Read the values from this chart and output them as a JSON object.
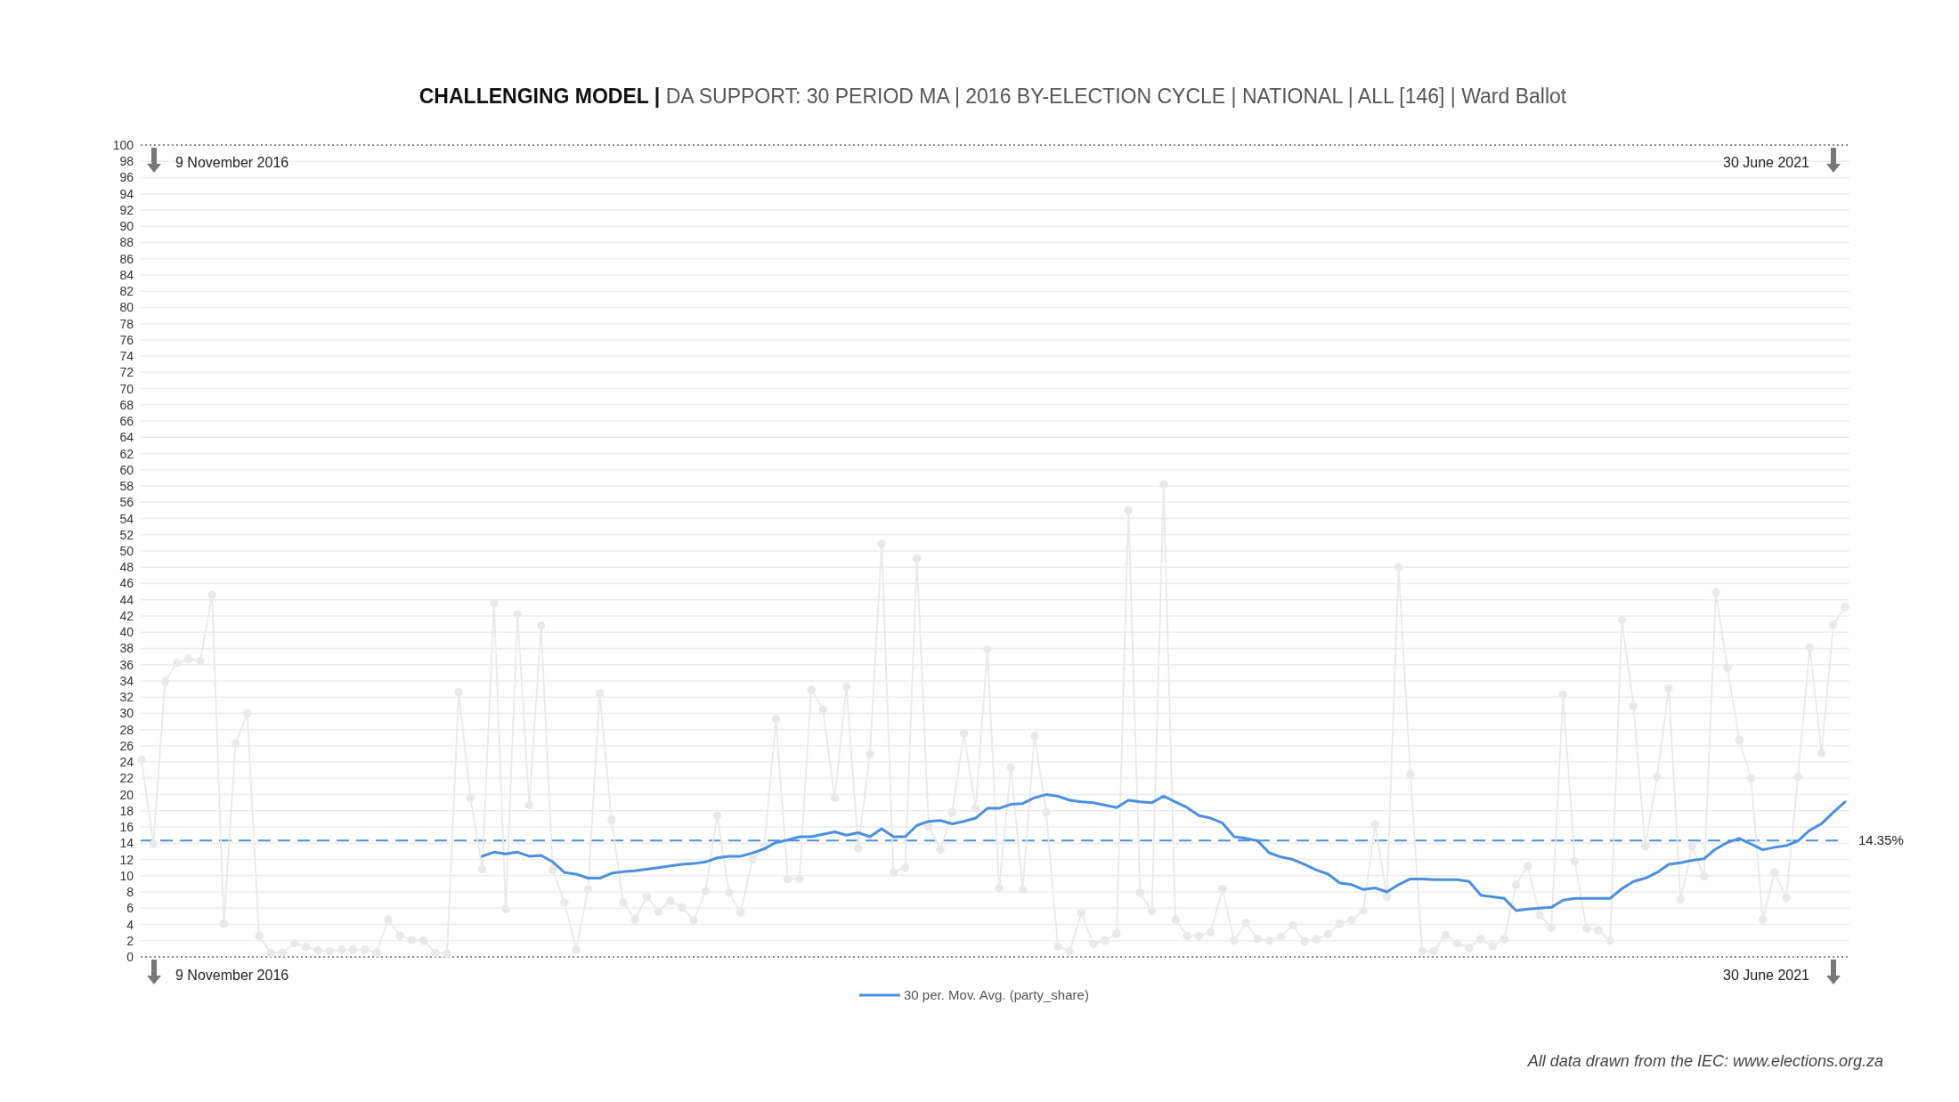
{
  "chart_data": {
    "type": "line",
    "title": "CHALLENGING MODEL |",
    "subtitle": "DA SUPPORT: 30 PERIOD MA | 2016 BY-ELECTION CYCLE | NATIONAL | ALL [146] | Ward Ballot",
    "categories": [
      null,
      null,
      null,
      null,
      null,
      null,
      null,
      null,
      null,
      null,
      null,
      null,
      null,
      null,
      null,
      null,
      null,
      null,
      null,
      null,
      null,
      null,
      null,
      null,
      null,
      null,
      null,
      null,
      null,
      null,
      null,
      null,
      null,
      null,
      null,
      null,
      null,
      null,
      null,
      null,
      null,
      null,
      null,
      null,
      null,
      null,
      null,
      null,
      null,
      null,
      null,
      null,
      null,
      null,
      null,
      null,
      null,
      null,
      null,
      null,
      null,
      null,
      null,
      null,
      null,
      null,
      null,
      null,
      null,
      null,
      null,
      null,
      null,
      null,
      null,
      null,
      null,
      null,
      null,
      null,
      null,
      null,
      null,
      null,
      null,
      null,
      null,
      null,
      null,
      null,
      null,
      null,
      null,
      null,
      null,
      null,
      null,
      null,
      null,
      null,
      null,
      null,
      null,
      null,
      null,
      null,
      null,
      null,
      null,
      null,
      null,
      null,
      null,
      null,
      null,
      null,
      null,
      null,
      null,
      null,
      null,
      null,
      null,
      null,
      null,
      null,
      null,
      null,
      null,
      null,
      null,
      null,
      null,
      null,
      null,
      null,
      null,
      null,
      null,
      null,
      null,
      null,
      null,
      null,
      null,
      null
    ],
    "series": [
      {
        "color": "#e9e9e9",
        "marker": "circle",
        "values": [
          24.3,
          13.9,
          33.9,
          36.2,
          36.7,
          36.5,
          44.6,
          4.1,
          26.3,
          30.0,
          2.6,
          0.5,
          0.5,
          1.7,
          1.2,
          0.8,
          0.7,
          0.9,
          0.9,
          0.9,
          0.5,
          4.6,
          2.6,
          2.1,
          2.0,
          0.5,
          0.4,
          32.6,
          19.6,
          10.8,
          43.6,
          5.9,
          42.2,
          18.7,
          40.8,
          10.7,
          6.7,
          0.9,
          8.3,
          32.5,
          16.9,
          6.7,
          4.6,
          7.4,
          5.6,
          6.9,
          6.1,
          4.5,
          8.1,
          17.4,
          7.9,
          5.5,
          12.0,
          13.5,
          29.3,
          9.6,
          9.6,
          32.9,
          30.5,
          19.6,
          33.3,
          13.4,
          25.0,
          50.9,
          10.4,
          11.0,
          49.1,
          16.1,
          13.2,
          17.8,
          27.5,
          18.3,
          37.9,
          8.5,
          23.3,
          8.3,
          27.2,
          17.8,
          1.3,
          0.7,
          5.4,
          1.6,
          2.0,
          2.9,
          55.0,
          7.9,
          5.7,
          58.2,
          4.6,
          2.6,
          2.6,
          3.0,
          8.4,
          2.0,
          4.2,
          2.2,
          2.0,
          2.5,
          3.9,
          1.9,
          2.2,
          2.8,
          4.1,
          4.5,
          5.7,
          16.3,
          7.4,
          48.0,
          22.5,
          0.7,
          0.7,
          2.7,
          1.7,
          1.1,
          2.2,
          1.3,
          2.2,
          8.9,
          11.2,
          5.2,
          3.6,
          32.3,
          11.8,
          3.5,
          3.3,
          2.0,
          41.5,
          30.9,
          13.6,
          22.2,
          33.1,
          7.1,
          13.6,
          9.9,
          44.9,
          35.6,
          26.7,
          22.0,
          4.6,
          10.4,
          7.3,
          22.2,
          38.1,
          25.1,
          40.9,
          43.1
        ]
      },
      {
        "name": "30 per. Mov. Avg. (party_share)",
        "color": "#4a90e2",
        "marker": "none",
        "values": [
          null,
          null,
          null,
          null,
          null,
          null,
          null,
          null,
          null,
          null,
          null,
          null,
          null,
          null,
          null,
          null,
          null,
          null,
          null,
          null,
          null,
          null,
          null,
          null,
          null,
          null,
          null,
          null,
          null,
          12.4,
          12.9,
          12.7,
          12.9,
          12.4,
          12.5,
          11.7,
          10.4,
          10.2,
          9.7,
          9.7,
          10.3,
          10.5,
          10.6,
          10.8,
          11.0,
          11.2,
          11.4,
          11.5,
          11.7,
          12.2,
          12.4,
          12.4,
          12.8,
          13.3,
          14.1,
          14.4,
          14.8,
          14.8,
          15.1,
          15.4,
          15.0,
          15.3,
          14.8,
          15.8,
          14.8,
          14.8,
          16.2,
          16.7,
          16.8,
          16.4,
          16.7,
          17.1,
          18.3,
          18.3,
          18.8,
          18.9,
          19.6,
          20.0,
          19.8,
          19.3,
          19.1,
          19.0,
          18.7,
          18.4,
          19.3,
          19.1,
          19.0,
          19.8,
          19.1,
          18.4,
          17.4,
          17.1,
          16.5,
          14.8,
          14.6,
          14.3,
          12.8,
          12.3,
          12.0,
          11.4,
          10.7,
          10.2,
          9.1,
          8.9,
          8.3,
          8.5,
          8.0,
          8.9,
          9.6,
          9.6,
          9.5,
          9.5,
          9.5,
          9.3,
          7.6,
          7.4,
          7.2,
          5.7,
          5.9,
          6.0,
          6.1,
          7.0,
          7.2,
          7.2,
          7.2,
          7.2,
          8.4,
          9.3,
          9.7,
          10.4,
          11.4,
          11.6,
          11.9,
          12.1,
          13.3,
          14.1,
          14.6,
          13.9,
          13.2,
          13.5,
          13.7,
          14.3,
          15.6,
          16.4,
          17.8,
          19.1
        ]
      }
    ],
    "ylim": [
      0,
      100
    ],
    "yticks": [
      0,
      2,
      4,
      6,
      8,
      10,
      12,
      14,
      16,
      18,
      20,
      22,
      24,
      26,
      28,
      30,
      32,
      34,
      36,
      38,
      40,
      42,
      44,
      46,
      48,
      50,
      52,
      54,
      56,
      58,
      60,
      62,
      64,
      66,
      68,
      70,
      72,
      74,
      76,
      78,
      80,
      82,
      84,
      86,
      88,
      90,
      92,
      94,
      96,
      98,
      100
    ],
    "grid": "y",
    "legend": "bottom",
    "tick_labels": "y",
    "ref_lines": [
      {
        "axis": "y",
        "value": 14.35,
        "label": "14.35%",
        "color": "#4a90e2",
        "line_style": "dashed"
      }
    ],
    "annotations": [
      "9 November 2016",
      "9 November 2016",
      "30 June 2021",
      "30 June 2021",
      "All data drawn from the IEC: www.elections.org.za"
    ]
  }
}
